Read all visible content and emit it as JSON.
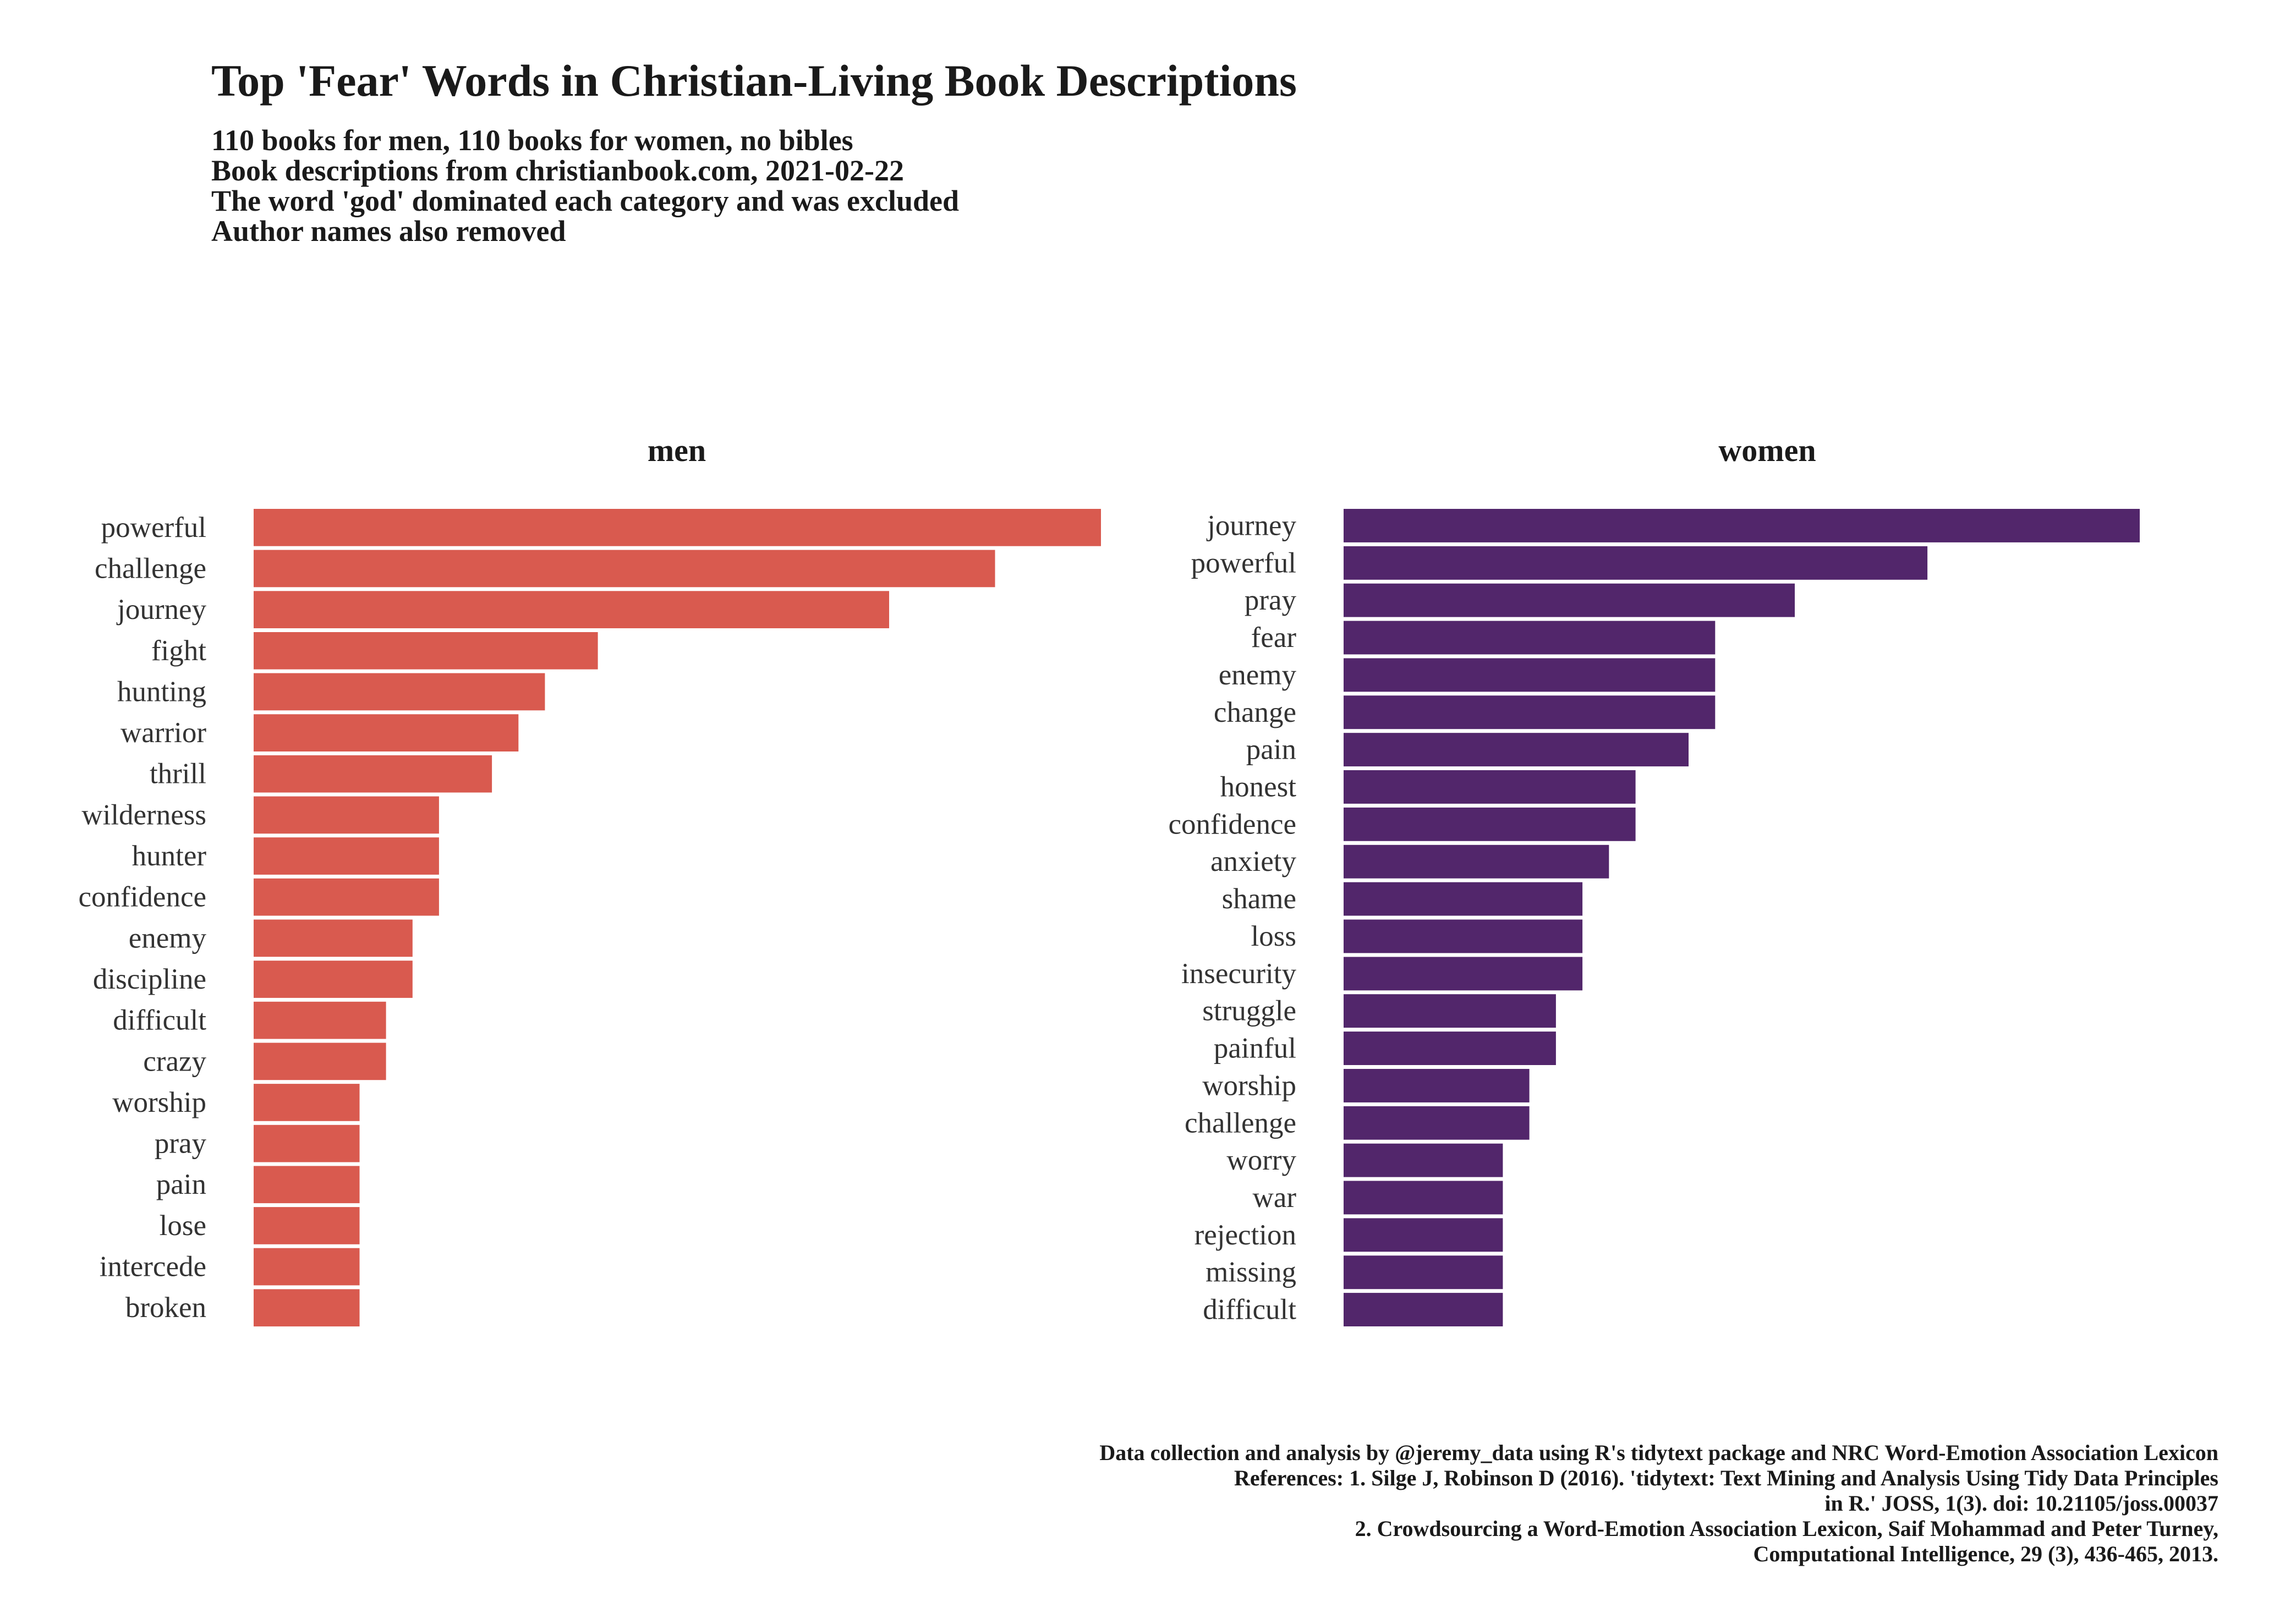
{
  "title": "Top 'Fear' Words in Christian-Living Book Descriptions",
  "subtitle_lines": [
    "110 books for men, 110 books for women, no bibles",
    "Book descriptions from christianbook.com, 2021-02-22",
    "The word 'god' dominated each category and was excluded",
    "Author names also removed"
  ],
  "caption_lines": [
    "Data collection and analysis by @jeremy_data using R's tidytext package and NRC Word-Emotion Association Lexicon",
    "References: 1. Silge J, Robinson D (2016). 'tidytext: Text Mining and Analysis Using Tidy Data Principles",
    "in R.' JOSS, 1(3). doi: 10.21105/joss.00037",
    "2. Crowdsourcing a Word-Emotion Association Lexicon, Saif Mohammad and Peter Turney,",
    "Computational Intelligence, 29 (3), 436-465, 2013."
  ],
  "colors": {
    "men": "#d95a4f",
    "women": "#52266b"
  },
  "chart_data": [
    {
      "type": "bar",
      "orientation": "horizontal",
      "title": "men",
      "categories": [
        "powerful",
        "challenge",
        "journey",
        "fight",
        "hunting",
        "warrior",
        "thrill",
        "wilderness",
        "hunter",
        "confidence",
        "enemy",
        "discipline",
        "difficult",
        "crazy",
        "worship",
        "pray",
        "pain",
        "lose",
        "intercede",
        "broken"
      ],
      "values": [
        32,
        28,
        24,
        13,
        11,
        10,
        9,
        7,
        7,
        7,
        6,
        6,
        5,
        5,
        4,
        4,
        4,
        4,
        4,
        4
      ],
      "xlim": [
        0,
        32
      ],
      "grid": false,
      "legend": "none"
    },
    {
      "type": "bar",
      "orientation": "horizontal",
      "title": "women",
      "categories": [
        "journey",
        "powerful",
        "pray",
        "fear",
        "enemy",
        "change",
        "pain",
        "honest",
        "confidence",
        "anxiety",
        "shame",
        "loss",
        "insecurity",
        "struggle",
        "painful",
        "worship",
        "challenge",
        "worry",
        "war",
        "rejection",
        "missing",
        "difficult"
      ],
      "values": [
        30,
        22,
        17,
        14,
        14,
        14,
        13,
        11,
        11,
        10,
        9,
        9,
        9,
        8,
        8,
        7,
        7,
        6,
        6,
        6,
        6,
        6
      ],
      "xlim": [
        0,
        30
      ],
      "grid": false,
      "legend": "none"
    }
  ]
}
